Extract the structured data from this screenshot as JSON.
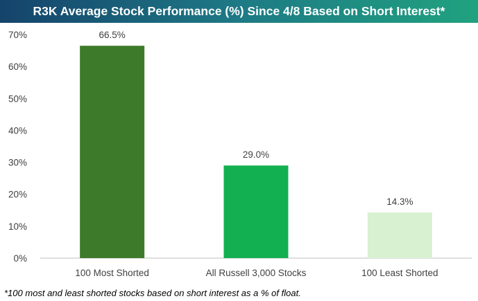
{
  "chart_data": {
    "type": "bar",
    "title": "R3K Average Stock Performance (%) Since 4/8 Based on Short Interest*",
    "categories": [
      "100 Most Shorted",
      "All Russell 3,000 Stocks",
      "100 Least Shorted"
    ],
    "values": [
      66.5,
      29.0,
      14.3
    ],
    "data_labels": [
      "66.5%",
      "29.0%",
      "14.3%"
    ],
    "bar_colors": [
      "#3d7a2a",
      "#13b051",
      "#d8f1d1"
    ],
    "ylim": [
      0,
      70
    ],
    "yticks": [
      0,
      10,
      20,
      30,
      40,
      50,
      60,
      70
    ],
    "ytick_labels": [
      "0%",
      "10%",
      "20%",
      "30%",
      "40%",
      "50%",
      "60%",
      "70%"
    ],
    "xlabel": "",
    "ylabel": "",
    "grid": false,
    "legend": "none"
  },
  "title_colors": {
    "start": "#15436b",
    "end": "#20a27f",
    "text": "#ffffff"
  },
  "footnote": "*100 most and least shorted stocks based on short interest as a % of float."
}
